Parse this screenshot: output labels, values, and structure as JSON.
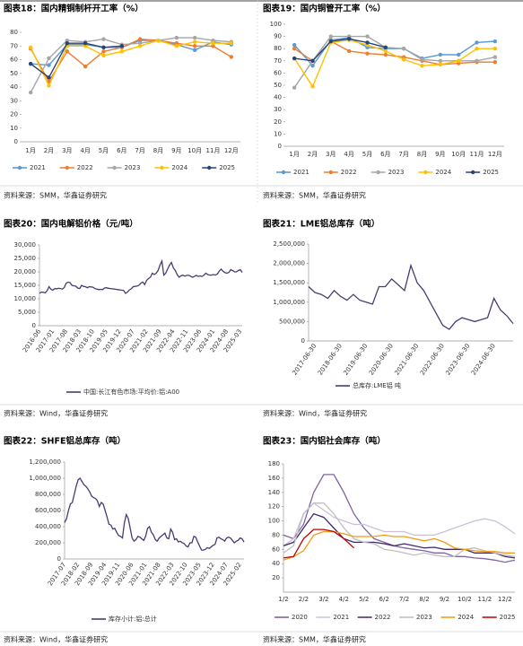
{
  "chart_data": [
    {
      "type": "line",
      "title": "图表18：国内精铜制杆开工率（%）",
      "source": "资料来源：SMM，华鑫证券研究",
      "markers": true,
      "grid": false,
      "categories": [
        "1月",
        "2月",
        "3月",
        "4月",
        "5月",
        "6月",
        "7月",
        "8月",
        "9月",
        "10月",
        "11月",
        "12月"
      ],
      "ylim": [
        0,
        80
      ],
      "yticks": [
        0,
        10,
        20,
        30,
        40,
        50,
        60,
        70,
        80
      ],
      "series": [
        {
          "name": "2021",
          "color": "#5b9bd5",
          "values": [
            57,
            56,
            71,
            71,
            69,
            69,
            74,
            74,
            71,
            67,
            73,
            71
          ]
        },
        {
          "name": "2022",
          "color": "#ed7d31",
          "values": [
            68,
            44,
            66,
            55,
            66,
            69,
            75,
            74,
            72,
            70,
            70,
            62
          ]
        },
        {
          "name": "2023",
          "color": "#a5a5a5",
          "values": [
            36,
            61,
            74,
            73,
            75,
            71,
            72,
            74,
            76,
            76,
            74,
            73
          ]
        },
        {
          "name": "2024",
          "color": "#ffc000",
          "values": [
            69,
            41,
            70,
            70,
            63,
            66,
            70,
            74,
            70,
            73,
            72,
            72
          ]
        },
        {
          "name": "2025",
          "color": "#264478",
          "values": [
            57,
            47,
            72,
            72,
            69,
            70,
            null,
            null,
            null,
            null,
            null,
            null
          ]
        }
      ]
    },
    {
      "type": "line",
      "title": "图表19：国内铜管开工率（%）",
      "source": "资料来源：SMM，华鑫证券研究",
      "markers": true,
      "grid": false,
      "categories": [
        "1月",
        "2月",
        "3月",
        "4月",
        "5月",
        "6月",
        "7月",
        "8月",
        "9月",
        "10月",
        "11月",
        "12月"
      ],
      "ylim": [
        0,
        100
      ],
      "yticks": [
        0,
        10,
        20,
        30,
        40,
        50,
        60,
        70,
        80,
        90,
        100
      ],
      "series": [
        {
          "name": "2021",
          "color": "#5b9bd5",
          "values": [
            83,
            66,
            87,
            89,
            81,
            80,
            80,
            72,
            75,
            75,
            85,
            86
          ]
        },
        {
          "name": "2022",
          "color": "#ed7d31",
          "values": [
            80,
            70,
            86,
            78,
            76,
            75,
            73,
            70,
            67,
            68,
            69,
            69
          ]
        },
        {
          "name": "2023",
          "color": "#a5a5a5",
          "values": [
            48,
            70,
            90,
            90,
            90,
            81,
            80,
            71,
            70,
            70,
            70,
            73
          ]
        },
        {
          "name": "2024",
          "color": "#ffc000",
          "values": [
            72,
            49,
            85,
            87,
            83,
            78,
            71,
            66,
            67,
            70,
            80,
            80
          ]
        },
        {
          "name": "2025",
          "color": "#264478",
          "values": [
            72,
            70,
            86,
            88,
            85,
            81,
            null,
            null,
            null,
            null,
            null,
            null
          ]
        }
      ]
    },
    {
      "type": "line",
      "title": "图表20：国内电解铝价格（元/吨）",
      "source": "资料来源：Wind，华鑫证券研究",
      "markers": false,
      "grid": false,
      "categories": [
        "2016-06",
        null,
        null,
        null,
        null,
        null,
        null,
        "2017-01",
        null,
        null,
        null,
        null,
        null,
        null,
        "2017-08",
        null,
        null,
        null,
        null,
        null,
        null,
        "2018-03",
        null,
        null,
        null,
        null,
        null,
        null,
        "2018-10",
        null,
        null,
        null,
        null,
        null,
        null,
        "2019-05",
        null,
        null,
        null,
        null,
        null,
        null,
        "2019-12",
        null,
        null,
        null,
        null,
        null,
        null,
        "2020-07",
        null,
        null,
        null,
        null,
        null,
        null,
        "2021-02",
        null,
        null,
        null,
        null,
        null,
        null,
        "2021-09",
        null,
        null,
        null,
        null,
        null,
        null,
        "2022-04",
        null,
        null,
        null,
        null,
        null,
        null,
        "2022-11",
        null,
        null,
        null,
        null,
        null,
        null,
        "2023-06",
        null,
        null,
        null,
        null,
        null,
        null,
        "2024-01",
        null,
        null,
        null,
        null,
        null,
        null,
        "2024-08",
        null,
        null,
        null,
        null,
        null,
        null,
        "2025-03",
        null
      ],
      "ylim": [
        0,
        30000
      ],
      "yticks": [
        0,
        {
          "value": 5000,
          "label": "5,000"
        },
        {
          "value": 10000,
          "label": "10,000"
        },
        {
          "value": 15000,
          "label": "15,000"
        },
        {
          "value": 20000,
          "label": "20,000"
        },
        {
          "value": 25000,
          "label": "25,000"
        },
        {
          "value": 30000,
          "label": "30,000"
        }
      ],
      "series": [
        {
          "name": "中国:长江有色市场:平均价:铝:A00",
          "color": "#4b3a73",
          "values": [
            12000,
            12500,
            12400,
            12200,
            13000,
            14500,
            13500,
            13200,
            13800,
            13700,
            13900,
            13800,
            13600,
            14200,
            15800,
            16200,
            16000,
            15000,
            14800,
            14700,
            14000,
            13800,
            15000,
            14600,
            14500,
            14100,
            14500,
            14400,
            14300,
            13800,
            13600,
            13400,
            13500,
            13400,
            14000,
            14100,
            13900,
            13800,
            13700,
            13600,
            13500,
            13400,
            13300,
            13200,
            13100,
            12000,
            12500,
            13300,
            13700,
            14500,
            14600,
            14700,
            15000,
            15800,
            16200,
            15300,
            16800,
            17500,
            18000,
            19500,
            19000,
            19500,
            20500,
            22500,
            24000,
            18800,
            19500,
            21000,
            22500,
            23500,
            21500,
            20500,
            19000,
            18000,
            18500,
            18800,
            18400,
            18700,
            18700,
            18400,
            18000,
            18300,
            18700,
            18300,
            18500,
            18300,
            18800,
            19500,
            19000,
            18800,
            18800,
            19000,
            18800,
            19200,
            20300,
            21000,
            20200,
            19700,
            19500,
            19800,
            20800,
            20500,
            20000,
            20000,
            20500,
            20800,
            19800
          ]
        }
      ]
    },
    {
      "type": "line",
      "title": "图表21：LME铝总库存（吨）",
      "source": "资料来源：Wind，华鑫证券研究",
      "markers": false,
      "grid": false,
      "categories": [
        null,
        "2017-06-30",
        null,
        null,
        null,
        "2018-06-30",
        null,
        null,
        null,
        "2019-06-30",
        null,
        null,
        null,
        "2020-06-30",
        null,
        null,
        null,
        "2021-06-30",
        null,
        null,
        null,
        "2022-06-30",
        null,
        null,
        null,
        "2023-06-30",
        null,
        null,
        null,
        "2024-06-30",
        null,
        null,
        null
      ],
      "ylim": [
        0,
        2500000
      ],
      "yticks": [
        0,
        {
          "value": 500000,
          "label": "500,000"
        },
        {
          "value": 1000000,
          "label": "1,000,000"
        },
        {
          "value": 1500000,
          "label": "1,500,000"
        },
        {
          "value": 2000000,
          "label": "2,000,000"
        },
        {
          "value": 2500000,
          "label": "2,500,000"
        }
      ],
      "series": [
        {
          "name": "总库存:LME铝 吨",
          "color": "#4b3a73",
          "values": [
            1400000,
            1250000,
            1200000,
            1100000,
            1300000,
            1150000,
            1050000,
            1200000,
            1050000,
            1000000,
            950000,
            1400000,
            1400000,
            1600000,
            1450000,
            1300000,
            1950000,
            1500000,
            1300000,
            1000000,
            700000,
            400000,
            300000,
            500000,
            600000,
            550000,
            500000,
            550000,
            600000,
            1100000,
            800000,
            650000,
            450000
          ]
        }
      ]
    },
    {
      "type": "line",
      "title": "图表22：SHFE铝总库存（吨）",
      "source": "资料来源：Wind，华鑫证券研究",
      "markers": false,
      "grid": false,
      "categories": [
        "2017-07",
        null,
        null,
        null,
        null,
        null,
        null,
        "2018-02",
        null,
        null,
        null,
        null,
        null,
        null,
        "2018-09",
        null,
        null,
        null,
        null,
        null,
        null,
        "2019-04",
        null,
        null,
        null,
        null,
        null,
        null,
        "2019-11",
        null,
        null,
        null,
        null,
        null,
        null,
        "2020-06",
        null,
        null,
        null,
        null,
        null,
        null,
        "2021-01",
        null,
        null,
        null,
        null,
        null,
        null,
        "2021-08",
        null,
        null,
        null,
        null,
        null,
        null,
        "2022-03",
        null,
        null,
        null,
        null,
        null,
        null,
        "2022-10",
        null,
        null,
        null,
        null,
        null,
        null,
        "2023-05",
        null,
        null,
        null,
        null,
        null,
        null,
        "2023-12",
        null,
        null,
        null,
        null,
        null,
        null,
        "2024-07",
        null,
        null,
        null,
        null,
        null,
        null,
        "2025-02",
        null,
        null
      ],
      "ylim": [
        0,
        1200000
      ],
      "yticks": [
        0,
        {
          "value": 200000,
          "label": "200,000"
        },
        {
          "value": 400000,
          "label": "400,000"
        },
        {
          "value": 600000,
          "label": "600,000"
        },
        {
          "value": 800000,
          "label": "800,000"
        },
        {
          "value": 1000000,
          "label": "1,000,000"
        },
        {
          "value": 1200000,
          "label": "1,200,000"
        }
      ],
      "series": [
        {
          "name": "库存小计:铝:总计",
          "color": "#4b3a73",
          "values": [
            450000,
            500000,
            600000,
            680000,
            700000,
            800000,
            900000,
            980000,
            1000000,
            960000,
            920000,
            900000,
            870000,
            830000,
            780000,
            760000,
            750000,
            720000,
            650000,
            700000,
            680000,
            600000,
            520000,
            430000,
            420000,
            370000,
            380000,
            330000,
            290000,
            280000,
            260000,
            450000,
            550000,
            500000,
            380000,
            260000,
            220000,
            240000,
            280000,
            270000,
            250000,
            230000,
            280000,
            380000,
            400000,
            330000,
            300000,
            240000,
            220000,
            260000,
            280000,
            300000,
            320000,
            260000,
            250000,
            370000,
            330000,
            240000,
            250000,
            210000,
            220000,
            200000,
            190000,
            160000,
            150000,
            200000,
            200000,
            280000,
            270000,
            210000,
            160000,
            110000,
            110000,
            120000,
            140000,
            130000,
            150000,
            170000,
            180000,
            260000,
            270000,
            250000,
            240000,
            220000,
            260000,
            270000,
            260000,
            230000,
            200000,
            220000,
            230000,
            260000,
            250000,
            210000
          ]
        }
      ]
    },
    {
      "type": "line",
      "title": "图表23：国内铝社会库存（吨）",
      "source": "资料来源：SMM，华鑫证券研究",
      "markers": false,
      "grid": false,
      "categories": [
        "1/2",
        null,
        "2/2",
        null,
        "3/2",
        null,
        "4/2",
        null,
        "5/2",
        null,
        "6/2",
        null,
        "7/2",
        null,
        "8/2",
        null,
        "9/2",
        null,
        "10/2",
        null,
        "11/2",
        null,
        "12/2",
        null
      ],
      "ylim": [
        0,
        180
      ],
      "yticks": [
        20,
        40,
        60,
        80,
        100,
        120,
        140,
        160,
        180
      ],
      "series": [
        {
          "name": "2020",
          "color": "#8064a2",
          "values": [
            80,
            75,
            95,
            140,
            165,
            165,
            140,
            110,
            90,
            75,
            70,
            65,
            62,
            60,
            58,
            55,
            55,
            50,
            50,
            48,
            47,
            45,
            42,
            45
          ]
        },
        {
          "name": "2021",
          "color": "#ccc0da",
          "values": [
            65,
            75,
            110,
            125,
            115,
            105,
            100,
            95,
            95,
            90,
            85,
            85,
            85,
            80,
            80,
            80,
            85,
            90,
            95,
            100,
            103,
            100,
            92,
            82
          ]
        },
        {
          "name": "2022",
          "color": "#3f2a6b",
          "values": [
            65,
            70,
            90,
            110,
            105,
            90,
            75,
            70,
            70,
            70,
            68,
            65,
            68,
            65,
            62,
            63,
            60,
            60,
            60,
            55,
            55,
            55,
            50,
            48
          ]
        },
        {
          "name": "2023",
          "color": "#bfbfbf",
          "values": [
            55,
            65,
            110,
            125,
            125,
            110,
            90,
            75,
            70,
            68,
            60,
            58,
            55,
            52,
            55,
            52,
            50,
            50,
            60,
            62,
            58,
            55,
            52,
            50
          ]
        },
        {
          "name": "2024",
          "color": "#f39c12",
          "values": [
            45,
            50,
            58,
            80,
            85,
            85,
            82,
            78,
            78,
            78,
            80,
            78,
            78,
            75,
            72,
            75,
            70,
            62,
            60,
            58,
            57,
            57,
            55,
            55
          ]
        },
        {
          "name": "2025",
          "color": "#c00000",
          "values": [
            48,
            50,
            75,
            88,
            88,
            85,
            75,
            62,
            null,
            null,
            null,
            null,
            null,
            null,
            null,
            null,
            null,
            null,
            null,
            null,
            null,
            null,
            null,
            null
          ]
        }
      ]
    }
  ]
}
